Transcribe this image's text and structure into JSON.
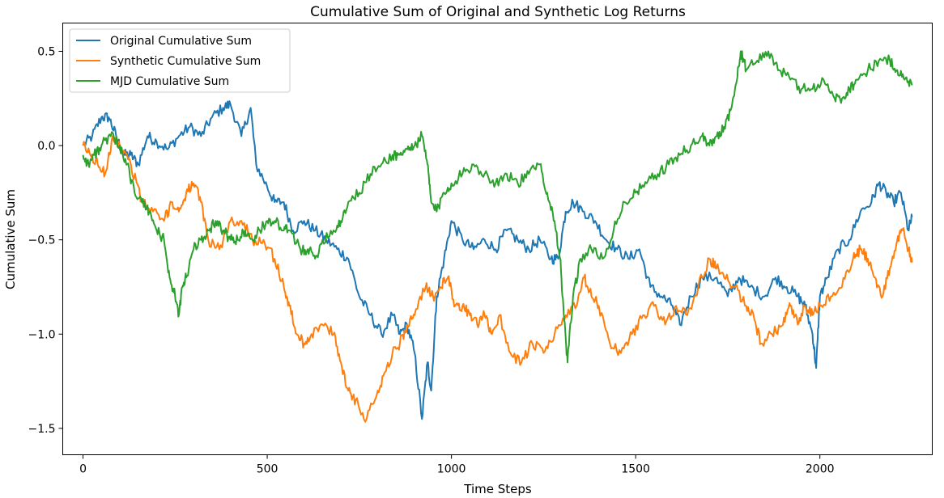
{
  "chart_data": {
    "type": "line",
    "title": "Cumulative Sum of Original and Synthetic Log Returns",
    "xlabel": "Time Steps",
    "ylabel": "Cumulative Sum",
    "xlim": [
      -55,
      2305
    ],
    "ylim": [
      -1.64,
      0.65
    ],
    "xticks": [
      0,
      500,
      1000,
      1500,
      2000
    ],
    "xtick_labels": [
      "0",
      "500",
      "1000",
      "1500",
      "2000"
    ],
    "yticks": [
      -1.5,
      -1.0,
      -0.5,
      0.0,
      0.5
    ],
    "ytick_labels": [
      "−1.5",
      "−1.0",
      "−0.5",
      "0.0",
      "0.5"
    ],
    "grid": false,
    "legend_position": "upper-left",
    "series": [
      {
        "name": "Original Cumulative Sum",
        "color": "#1f77b4",
        "x": [
          0,
          25,
          50,
          70,
          90,
          110,
          130,
          150,
          175,
          200,
          230,
          260,
          290,
          320,
          350,
          380,
          400,
          430,
          455,
          470,
          500,
          520,
          545,
          570,
          600,
          630,
          660,
          690,
          720,
          750,
          780,
          810,
          840,
          860,
          880,
          900,
          920,
          935,
          945,
          960,
          980,
          1000,
          1030,
          1060,
          1090,
          1120,
          1150,
          1180,
          1210,
          1240,
          1270,
          1290,
          1310,
          1330,
          1360,
          1390,
          1420,
          1450,
          1480,
          1510,
          1540,
          1570,
          1600,
          1620,
          1650,
          1680,
          1720,
          1750,
          1780,
          1810,
          1850,
          1880,
          1910,
          1940,
          1960,
          1980,
          1990,
          2000,
          2020,
          2050,
          2080,
          2110,
          2140,
          2160,
          2180,
          2200,
          2220,
          2240,
          2250
        ],
        "values": [
          0.0,
          0.05,
          0.15,
          0.15,
          0.05,
          -0.05,
          -0.05,
          -0.1,
          0.05,
          0.02,
          -0.02,
          0.05,
          0.1,
          0.05,
          0.15,
          0.2,
          0.22,
          0.05,
          0.2,
          -0.1,
          -0.22,
          -0.3,
          -0.3,
          -0.45,
          -0.4,
          -0.45,
          -0.5,
          -0.55,
          -0.6,
          -0.8,
          -0.9,
          -1.0,
          -0.9,
          -1.0,
          -0.95,
          -1.1,
          -1.45,
          -1.15,
          -1.3,
          -0.8,
          -0.6,
          -0.4,
          -0.5,
          -0.55,
          -0.5,
          -0.55,
          -0.45,
          -0.5,
          -0.55,
          -0.5,
          -0.6,
          -0.6,
          -0.35,
          -0.3,
          -0.35,
          -0.4,
          -0.5,
          -0.55,
          -0.6,
          -0.55,
          -0.75,
          -0.8,
          -0.85,
          -0.95,
          -0.8,
          -0.7,
          -0.7,
          -0.8,
          -0.7,
          -0.75,
          -0.8,
          -0.7,
          -0.75,
          -0.8,
          -0.85,
          -1.0,
          -1.18,
          -0.8,
          -0.7,
          -0.55,
          -0.5,
          -0.35,
          -0.3,
          -0.2,
          -0.25,
          -0.3,
          -0.25,
          -0.45,
          -0.38
        ]
      },
      {
        "name": "Synthetic Cumulative Sum",
        "color": "#ff7f0e",
        "x": [
          0,
          20,
          40,
          60,
          80,
          100,
          130,
          160,
          190,
          220,
          240,
          260,
          280,
          300,
          320,
          340,
          370,
          400,
          430,
          460,
          490,
          520,
          545,
          560,
          580,
          600,
          620,
          650,
          680,
          700,
          720,
          740,
          770,
          800,
          820,
          840,
          860,
          880,
          900,
          930,
          950,
          970,
          990,
          1010,
          1030,
          1050,
          1070,
          1090,
          1110,
          1130,
          1160,
          1190,
          1220,
          1250,
          1280,
          1310,
          1340,
          1360,
          1380,
          1400,
          1430,
          1460,
          1490,
          1520,
          1550,
          1580,
          1610,
          1640,
          1670,
          1700,
          1720,
          1740,
          1770,
          1800,
          1820,
          1840,
          1870,
          1900,
          1920,
          1940,
          1960,
          1980,
          2000,
          2030,
          2060,
          2090,
          2110,
          2130,
          2150,
          2170,
          2190,
          2210,
          2225,
          2240,
          2250
        ],
        "values": [
          0.0,
          -0.05,
          -0.1,
          -0.15,
          0.05,
          0.0,
          -0.1,
          -0.3,
          -0.35,
          -0.4,
          -0.3,
          -0.35,
          -0.25,
          -0.2,
          -0.3,
          -0.5,
          -0.55,
          -0.4,
          -0.4,
          -0.5,
          -0.5,
          -0.6,
          -0.75,
          -0.85,
          -1.0,
          -1.05,
          -1.0,
          -0.95,
          -1.0,
          -1.15,
          -1.3,
          -1.35,
          -1.45,
          -1.3,
          -1.2,
          -1.1,
          -1.05,
          -0.95,
          -0.9,
          -0.75,
          -0.8,
          -0.75,
          -0.7,
          -0.85,
          -0.85,
          -0.9,
          -0.95,
          -0.9,
          -1.0,
          -0.9,
          -1.1,
          -1.15,
          -1.05,
          -1.1,
          -1.0,
          -0.9,
          -0.85,
          -0.7,
          -0.8,
          -0.85,
          -1.05,
          -1.1,
          -1.0,
          -0.9,
          -0.85,
          -0.95,
          -0.85,
          -0.9,
          -0.75,
          -0.6,
          -0.65,
          -0.7,
          -0.75,
          -0.85,
          -0.9,
          -1.05,
          -1.0,
          -0.95,
          -0.85,
          -0.95,
          -0.85,
          -0.9,
          -0.85,
          -0.8,
          -0.75,
          -0.6,
          -0.55,
          -0.6,
          -0.7,
          -0.8,
          -0.65,
          -0.5,
          -0.45,
          -0.55,
          -0.62
        ]
      },
      {
        "name": "MJD Cumulative Sum",
        "color": "#2ca02c",
        "x": [
          0,
          15,
          30,
          50,
          75,
          100,
          120,
          140,
          160,
          180,
          200,
          220,
          235,
          250,
          260,
          270,
          280,
          300,
          320,
          340,
          360,
          380,
          400,
          420,
          440,
          460,
          480,
          500,
          520,
          545,
          560,
          590,
          610,
          630,
          650,
          680,
          700,
          720,
          750,
          780,
          810,
          840,
          860,
          880,
          900,
          920,
          935,
          945,
          960,
          980,
          1000,
          1030,
          1060,
          1090,
          1120,
          1150,
          1180,
          1210,
          1240,
          1260,
          1280,
          1295,
          1305,
          1315,
          1330,
          1350,
          1380,
          1410,
          1440,
          1470,
          1500,
          1530,
          1560,
          1590,
          1620,
          1650,
          1680,
          1700,
          1720,
          1740,
          1760,
          1775,
          1785,
          1800,
          1830,
          1860,
          1890,
          1920,
          1950,
          1980,
          2010,
          2040,
          2060,
          2080,
          2100,
          2130,
          2160,
          2190,
          2210,
          2230,
          2250
        ],
        "values": [
          -0.05,
          -0.1,
          -0.05,
          0.0,
          0.05,
          0.0,
          -0.1,
          -0.25,
          -0.3,
          -0.35,
          -0.45,
          -0.5,
          -0.7,
          -0.8,
          -0.9,
          -0.75,
          -0.7,
          -0.55,
          -0.5,
          -0.45,
          -0.4,
          -0.45,
          -0.5,
          -0.5,
          -0.45,
          -0.5,
          -0.45,
          -0.4,
          -0.4,
          -0.45,
          -0.45,
          -0.55,
          -0.55,
          -0.6,
          -0.5,
          -0.45,
          -0.4,
          -0.3,
          -0.25,
          -0.15,
          -0.1,
          -0.05,
          -0.05,
          -0.02,
          0.0,
          0.05,
          -0.1,
          -0.3,
          -0.35,
          -0.25,
          -0.2,
          -0.15,
          -0.1,
          -0.15,
          -0.2,
          -0.15,
          -0.2,
          -0.15,
          -0.1,
          -0.25,
          -0.4,
          -0.6,
          -0.9,
          -1.15,
          -0.8,
          -0.6,
          -0.55,
          -0.6,
          -0.45,
          -0.3,
          -0.25,
          -0.2,
          -0.15,
          -0.1,
          -0.05,
          0.0,
          0.05,
          0.0,
          0.05,
          0.1,
          0.2,
          0.35,
          0.5,
          0.4,
          0.45,
          0.5,
          0.4,
          0.35,
          0.3,
          0.3,
          0.35,
          0.25,
          0.25,
          0.3,
          0.35,
          0.4,
          0.45,
          0.45,
          0.4,
          0.35,
          0.32
        ]
      }
    ]
  }
}
